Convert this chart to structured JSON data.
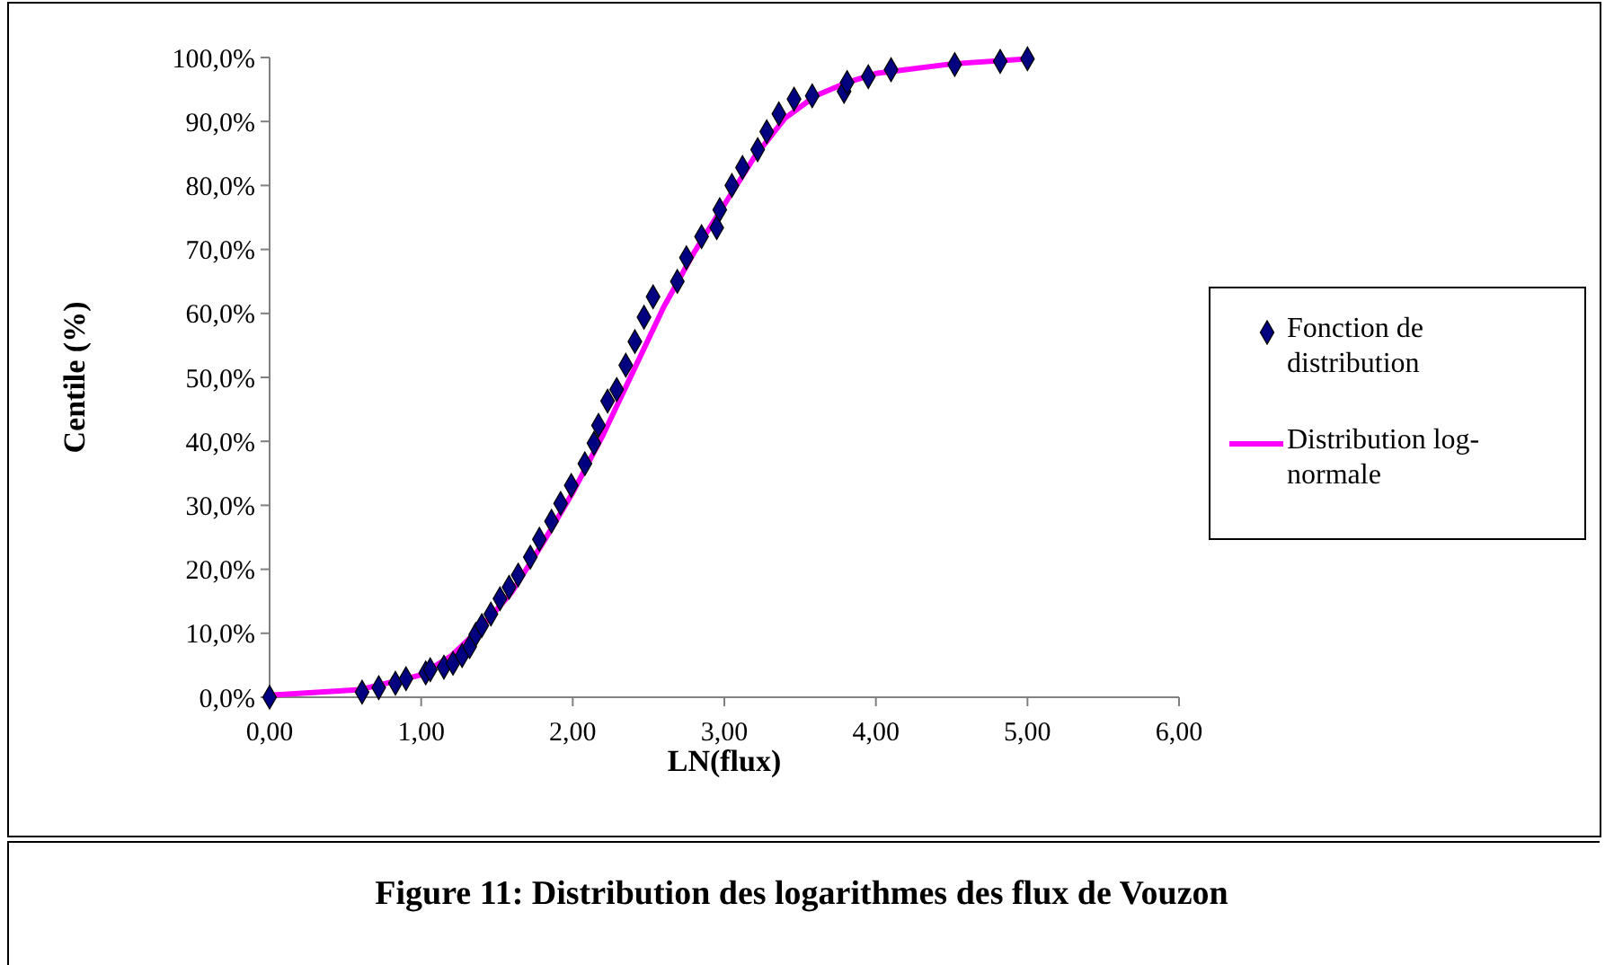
{
  "chart_data": {
    "type": "scatter",
    "title": "Figure 11: Distribution des logarithmes des flux de Vouzon",
    "xlabel": "LN(flux)",
    "ylabel": "Centile (%)",
    "xlim": [
      0,
      6
    ],
    "xticks": [
      {
        "value": 0,
        "label": "0,00"
      },
      {
        "value": 1,
        "label": "1,00"
      },
      {
        "value": 2,
        "label": "2,00"
      },
      {
        "value": 3,
        "label": "3,00"
      },
      {
        "value": 4,
        "label": "4,00"
      },
      {
        "value": 5,
        "label": "5,00"
      },
      {
        "value": 6,
        "label": "6,00"
      }
    ],
    "ylim": [
      0,
      100
    ],
    "yticks": [
      {
        "value": 0,
        "label": "0,0%"
      },
      {
        "value": 10,
        "label": "10,0%"
      },
      {
        "value": 20,
        "label": "20,0%"
      },
      {
        "value": 30,
        "label": "30,0%"
      },
      {
        "value": 40,
        "label": "40,0%"
      },
      {
        "value": 50,
        "label": "50,0%"
      },
      {
        "value": 60,
        "label": "60,0%"
      },
      {
        "value": 70,
        "label": "70,0%"
      },
      {
        "value": 80,
        "label": "80,0%"
      },
      {
        "value": 90,
        "label": "90,0%"
      },
      {
        "value": 100,
        "label": "100,0%"
      }
    ],
    "grid": false,
    "legend": "right",
    "series": [
      {
        "name": "Fonction de distribution",
        "marker": "diamond",
        "color": "#000080",
        "x": [
          0,
          0.61,
          0.72,
          0.83,
          0.9,
          1.03,
          1.06,
          1.15,
          1.21,
          1.27,
          1.32,
          1.36,
          1.4,
          1.46,
          1.52,
          1.58,
          1.64,
          1.72,
          1.78,
          1.86,
          1.92,
          1.99,
          2.08,
          2.14,
          2.17,
          2.23,
          2.29,
          2.35,
          2.41,
          2.47,
          2.53,
          2.69,
          2.75,
          2.85,
          2.95,
          2.97,
          3.05,
          3.12,
          3.22,
          3.28,
          3.36,
          3.46,
          3.58,
          3.79,
          3.81,
          3.95,
          4.1,
          4.52,
          4.82,
          5.0
        ],
        "values": [
          0,
          0.8,
          1.5,
          2.2,
          2.9,
          3.8,
          4.3,
          4.7,
          5.3,
          6.5,
          7.9,
          9.8,
          11.2,
          13,
          15.4,
          17.2,
          19.1,
          21.9,
          24.7,
          27.5,
          30.3,
          33.1,
          36.5,
          39.7,
          42.5,
          46.3,
          48.1,
          51.9,
          55.6,
          59.4,
          62.6,
          65,
          68.7,
          72,
          73.4,
          76.2,
          80,
          82.8,
          85.6,
          88.4,
          91.2,
          93.5,
          94,
          94.7,
          96.1,
          97,
          98.1,
          98.9,
          99.4,
          99.8
        ]
      },
      {
        "name": "Distribution log-normale",
        "type": "line",
        "marker": "none",
        "line_style": "solid",
        "color": "#ff00ff",
        "x": [
          0,
          0.6,
          1.0,
          1.2,
          1.4,
          1.6,
          1.8,
          2.0,
          2.2,
          2.4,
          2.6,
          2.8,
          3.0,
          3.2,
          3.4,
          3.6,
          3.8,
          4.0,
          4.5,
          5.0
        ],
        "values": [
          0.3,
          1.2,
          3.5,
          6.5,
          11,
          16.5,
          24,
          32,
          41,
          51,
          61,
          69.5,
          77,
          84.5,
          90.5,
          94,
          96,
          97.5,
          99,
          99.8
        ]
      }
    ]
  }
}
